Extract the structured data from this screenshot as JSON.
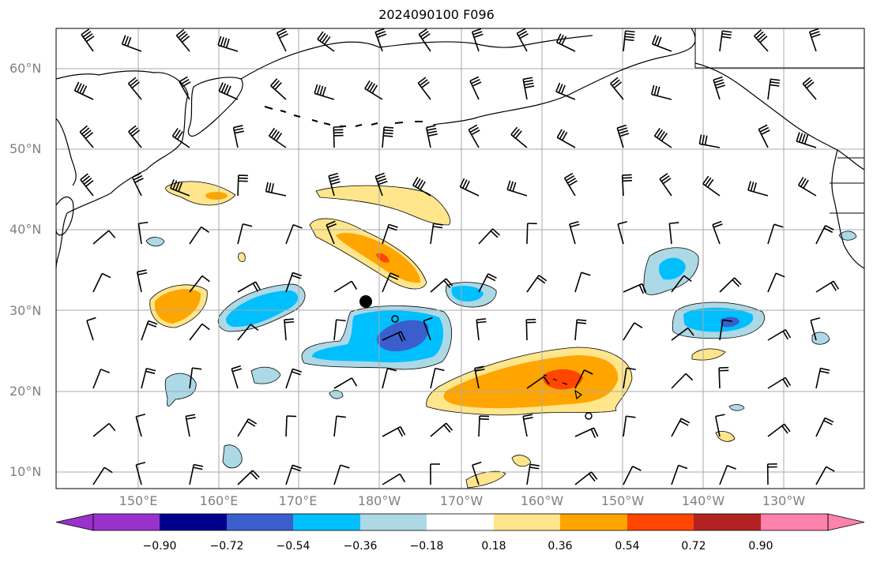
{
  "title": "2024090100 F096",
  "lat_labels": [
    "60°N",
    "50°N",
    "40°N",
    "30°N",
    "20°N",
    "10°N"
  ],
  "lon_labels": [
    "150°E",
    "160°E",
    "170°E",
    "180°W",
    "170°W",
    "160°W",
    "150°W",
    "140°W",
    "130°W"
  ],
  "colorbar": {
    "ticks": [
      "−0.90",
      "−0.72",
      "−0.54",
      "−0.36",
      "−0.18",
      "0.18",
      "0.36",
      "0.54",
      "0.72",
      "0.90"
    ],
    "colors": [
      "#9932cc",
      "#00008b",
      "#3a5fcd",
      "#00bfff",
      "#add8e6",
      "#ffffff",
      "#ffe68c",
      "#ffa500",
      "#ff4500",
      "#b22222",
      "#ff82ab"
    ]
  },
  "map": {
    "extent": {
      "lon_min": 141,
      "lon_max": -121,
      "lat_min": 8,
      "lat_max": 65
    },
    "marker_lat": 31,
    "marker_lon": -181.7
  }
}
